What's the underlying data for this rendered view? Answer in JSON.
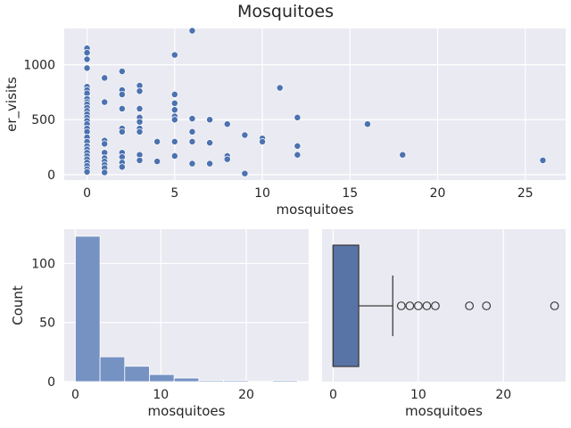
{
  "title": "Mosquitoes",
  "colors": {
    "background": "#eaeaf2",
    "grid": "#ffffff",
    "point": "#4c72b0",
    "hist_fill": "#7592c3",
    "box_fill": "#5874a6",
    "text": "#262626",
    "line": "#3d3d3d"
  },
  "chart_data": [
    {
      "type": "scatter",
      "xlabel": "mosquitoes",
      "ylabel": "er_visits",
      "xlim": [
        -1.3,
        27.3
      ],
      "ylim": [
        -50,
        1330
      ],
      "xticks": [
        0,
        5,
        10,
        15,
        20,
        25
      ],
      "yticks": [
        0,
        500,
        1000
      ],
      "grid": true,
      "points": [
        [
          0,
          1150
        ],
        [
          0,
          1110
        ],
        [
          0,
          1050
        ],
        [
          0,
          970
        ],
        [
          0,
          800
        ],
        [
          0,
          770
        ],
        [
          0,
          740
        ],
        [
          0,
          690
        ],
        [
          0,
          660
        ],
        [
          0,
          640
        ],
        [
          0,
          610
        ],
        [
          0,
          580
        ],
        [
          0,
          550
        ],
        [
          0,
          520
        ],
        [
          0,
          490
        ],
        [
          0,
          460
        ],
        [
          0,
          420
        ],
        [
          0,
          390
        ],
        [
          0,
          340
        ],
        [
          0,
          300
        ],
        [
          0,
          260
        ],
        [
          0,
          230
        ],
        [
          0,
          200
        ],
        [
          0,
          170
        ],
        [
          0,
          140
        ],
        [
          0,
          110
        ],
        [
          0,
          80
        ],
        [
          0,
          50
        ],
        [
          0,
          25
        ],
        [
          1,
          880
        ],
        [
          1,
          660
        ],
        [
          1,
          310
        ],
        [
          1,
          280
        ],
        [
          1,
          200
        ],
        [
          1,
          150
        ],
        [
          1,
          120
        ],
        [
          1,
          90
        ],
        [
          1,
          60
        ],
        [
          1,
          20
        ],
        [
          2,
          940
        ],
        [
          2,
          770
        ],
        [
          2,
          730
        ],
        [
          2,
          600
        ],
        [
          2,
          420
        ],
        [
          2,
          390
        ],
        [
          2,
          200
        ],
        [
          2,
          160
        ],
        [
          2,
          110
        ],
        [
          2,
          70
        ],
        [
          3,
          810
        ],
        [
          3,
          760
        ],
        [
          3,
          600
        ],
        [
          3,
          520
        ],
        [
          3,
          480
        ],
        [
          3,
          420
        ],
        [
          3,
          390
        ],
        [
          3,
          180
        ],
        [
          3,
          130
        ],
        [
          4,
          300
        ],
        [
          4,
          120
        ],
        [
          5,
          1090
        ],
        [
          5,
          730
        ],
        [
          5,
          650
        ],
        [
          5,
          590
        ],
        [
          5,
          530
        ],
        [
          5,
          500
        ],
        [
          5,
          300
        ],
        [
          5,
          170
        ],
        [
          6,
          1310
        ],
        [
          6,
          510
        ],
        [
          6,
          390
        ],
        [
          6,
          300
        ],
        [
          6,
          100
        ],
        [
          7,
          500
        ],
        [
          7,
          290
        ],
        [
          7,
          100
        ],
        [
          8,
          460
        ],
        [
          8,
          170
        ],
        [
          8,
          140
        ],
        [
          9,
          360
        ],
        [
          9,
          10
        ],
        [
          10,
          330
        ],
        [
          10,
          300
        ],
        [
          11,
          790
        ],
        [
          12,
          520
        ],
        [
          12,
          260
        ],
        [
          12,
          180
        ],
        [
          16,
          460
        ],
        [
          18,
          180
        ],
        [
          26,
          130
        ]
      ]
    },
    {
      "type": "histogram",
      "xlabel": "mosquitoes",
      "ylabel": "Count",
      "xlim": [
        -1.3,
        27.3
      ],
      "ylim": [
        0,
        129
      ],
      "xticks": [
        0,
        10,
        20
      ],
      "yticks": [
        0,
        50,
        100
      ],
      "grid": true,
      "bins": [
        {
          "x0": 0,
          "x1": 2.889,
          "count": 123
        },
        {
          "x0": 2.889,
          "x1": 5.778,
          "count": 21
        },
        {
          "x0": 5.778,
          "x1": 8.667,
          "count": 13
        },
        {
          "x0": 8.667,
          "x1": 11.556,
          "count": 6
        },
        {
          "x0": 11.556,
          "x1": 14.444,
          "count": 3
        },
        {
          "x0": 14.444,
          "x1": 17.333,
          "count": 1
        },
        {
          "x0": 17.333,
          "x1": 20.222,
          "count": 1
        },
        {
          "x0": 20.222,
          "x1": 23.111,
          "count": 0
        },
        {
          "x0": 23.111,
          "x1": 26,
          "count": 1
        }
      ]
    },
    {
      "type": "box",
      "xlabel": "mosquitoes",
      "xlim": [
        -1.3,
        27.3
      ],
      "xticks": [
        0,
        10,
        20
      ],
      "grid": true,
      "q1": 0,
      "median": 0,
      "q3": 3,
      "whisker_low": 0,
      "whisker_high": 7,
      "outliers": [
        8,
        9,
        10,
        11,
        12,
        16,
        18,
        26
      ]
    }
  ]
}
